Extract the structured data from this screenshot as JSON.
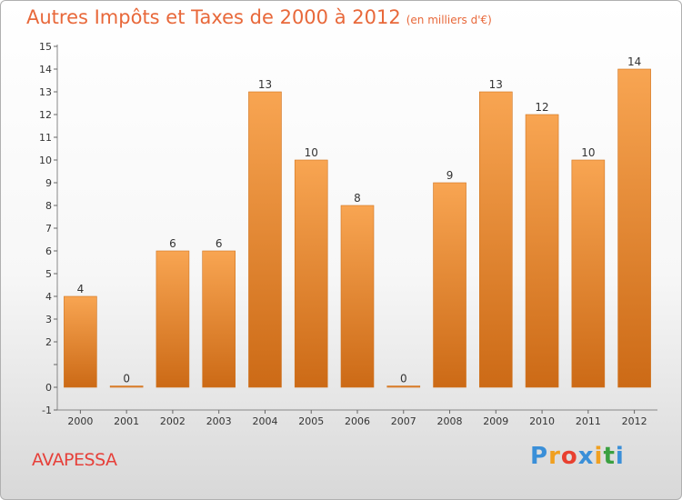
{
  "chart_data": {
    "type": "bar",
    "title": "Autres Impôts et Taxes de 2000 à 2012",
    "subtitle": "(en milliers d'€)",
    "categories": [
      "2000",
      "2001",
      "2002",
      "2003",
      "2004",
      "2005",
      "2006",
      "2007",
      "2008",
      "2009",
      "2010",
      "2011",
      "2012"
    ],
    "values": [
      4,
      0,
      6,
      6,
      13,
      10,
      8,
      0,
      9,
      13,
      12,
      10,
      14
    ],
    "data_labels": [
      "4",
      "0",
      "6",
      "6",
      "13",
      "10",
      "8",
      "0",
      "9",
      "13",
      "12",
      "10",
      "14"
    ],
    "ylim": [
      -1,
      15
    ],
    "yticks": [
      -1,
      0,
      1,
      2,
      3,
      4,
      5,
      6,
      7,
      8,
      9,
      10,
      11,
      12,
      13,
      14,
      15
    ],
    "ytick_labels": [
      "-1",
      "0",
      "",
      "2",
      "3",
      "4",
      "5",
      "6",
      "7",
      "8",
      "9",
      "10",
      "11",
      "12",
      "13",
      "14",
      "15"
    ],
    "grid": false,
    "bar_color": "#f39b45"
  },
  "commune_name": "AVAPESSA",
  "logo": {
    "letters": [
      "P",
      "r",
      "o",
      "x",
      "i",
      "t",
      "i"
    ],
    "colors": [
      "#3a8fd8",
      "#f0a020",
      "#e84030",
      "#3a8fd8",
      "#f0a020",
      "#3aa040",
      "#3a8fd8"
    ]
  }
}
